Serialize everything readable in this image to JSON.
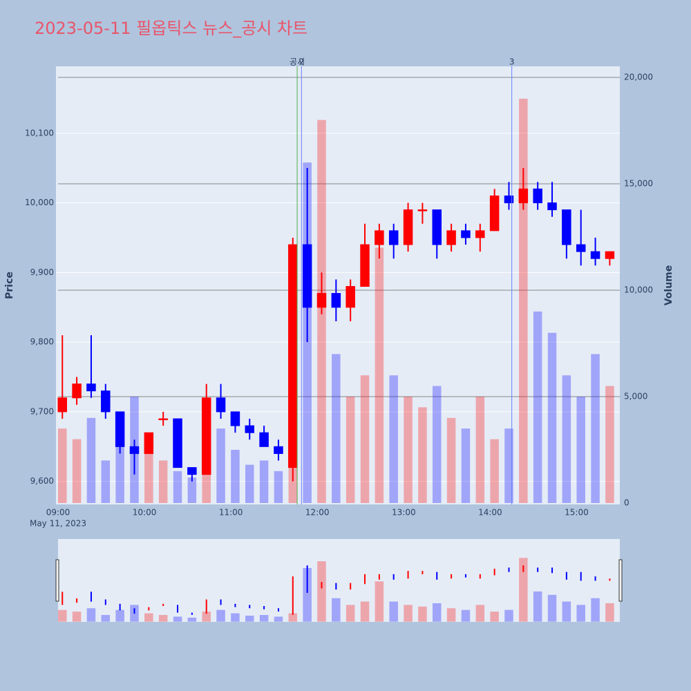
{
  "chart_data": {
    "type": "candlestick",
    "title": "2023-05-11 필옵틱스 뉴스_공시 차트",
    "y_title": "Price",
    "y2_title": "Volume",
    "x_date_label": "May 11, 2023",
    "increasing_color": "#ff0000",
    "decreasing_color": "#0000ff",
    "x": [
      "09:00",
      "09:10",
      "09:20",
      "09:30",
      "09:40",
      "09:50",
      "10:00",
      "10:10",
      "10:20",
      "10:30",
      "10:40",
      "10:50",
      "11:00",
      "11:10",
      "11:20",
      "11:30",
      "11:40",
      "11:50",
      "12:00",
      "12:10",
      "12:20",
      "12:30",
      "12:40",
      "12:50",
      "13:00",
      "13:10",
      "13:20",
      "13:30",
      "13:40",
      "13:50",
      "14:00",
      "14:10",
      "14:20",
      "14:30",
      "14:40",
      "14:50",
      "15:00",
      "15:10",
      "15:20"
    ],
    "open": [
      9700,
      9720,
      9740,
      9730,
      9700,
      9650,
      9640,
      9690,
      9690,
      9620,
      9610,
      9720,
      9700,
      9680,
      9670,
      9650,
      9620,
      9940,
      9850,
      9870,
      9850,
      9880,
      9940,
      9960,
      9940,
      9990,
      9990,
      9940,
      9960,
      9950,
      9960,
      10010,
      10000,
      10020,
      10000,
      9990,
      9940,
      9930,
      9920
    ],
    "high": [
      9810,
      9750,
      9810,
      9740,
      9700,
      9660,
      9670,
      9700,
      9690,
      9620,
      9740,
      9740,
      9700,
      9690,
      9680,
      9660,
      9950,
      10050,
      9900,
      9890,
      9890,
      9970,
      9970,
      9970,
      10000,
      10000,
      9990,
      9970,
      9970,
      9970,
      10020,
      10030,
      10050,
      10030,
      10030,
      9990,
      9990,
      9950,
      9930
    ],
    "low": [
      9690,
      9710,
      9720,
      9690,
      9640,
      9610,
      9640,
      9680,
      9620,
      9600,
      9610,
      9690,
      9670,
      9660,
      9650,
      9630,
      9600,
      9800,
      9840,
      9830,
      9830,
      9880,
      9920,
      9920,
      9930,
      9970,
      9920,
      9930,
      9940,
      9930,
      9960,
      9990,
      9990,
      9990,
      9980,
      9920,
      9910,
      9910,
      9910
    ],
    "close": [
      9720,
      9740,
      9730,
      9700,
      9650,
      9640,
      9670,
      9690,
      9620,
      9610,
      9720,
      9700,
      9680,
      9670,
      9650,
      9640,
      9940,
      9850,
      9870,
      9850,
      9880,
      9940,
      9960,
      9940,
      9990,
      9990,
      9940,
      9960,
      9950,
      9960,
      10010,
      10000,
      10020,
      10000,
      9990,
      9940,
      9930,
      9920,
      9930
    ],
    "volume": [
      3500,
      3000,
      4000,
      2000,
      3500,
      5000,
      2500,
      2000,
      1500,
      1200,
      3000,
      3500,
      2500,
      1800,
      2000,
      1500,
      2500,
      16000,
      18000,
      7000,
      5000,
      6000,
      12000,
      6000,
      5000,
      4500,
      5500,
      4000,
      3500,
      5000,
      3000,
      3500,
      19000,
      9000,
      8000,
      6000,
      5000,
      7000,
      5500
    ],
    "xlim": [
      "09:00",
      "15:30"
    ],
    "xticks": [
      "09:00",
      "10:00",
      "11:00",
      "12:00",
      "13:00",
      "14:00",
      "15:00"
    ],
    "ylim": [
      9567,
      10196
    ],
    "yticks": [
      {
        "value": 9600,
        "label": "9,600"
      },
      {
        "value": 9700,
        "label": "9,700"
      },
      {
        "value": 9800,
        "label": "9,800"
      },
      {
        "value": 9900,
        "label": "9,900"
      },
      {
        "value": 10000,
        "label": "10,000"
      },
      {
        "value": 10100,
        "label": "10,100"
      }
    ],
    "y2lim": [
      -65,
      20520
    ],
    "y2ticks": [
      0,
      {
        "value": 5000,
        "label": "5,000"
      },
      {
        "value": 10000,
        "label": "10,000"
      },
      {
        "value": 15000,
        "label": "15,000"
      },
      {
        "value": 20000,
        "label": "20,000"
      }
    ],
    "vlines": [
      {
        "x": "11:46",
        "label": "공시",
        "color": "#4caf50"
      },
      {
        "x": "11:49",
        "label": "2",
        "color": "#6a7fff"
      },
      {
        "x": "14:15",
        "label": "3",
        "color": "#6a7fff"
      }
    ]
  }
}
